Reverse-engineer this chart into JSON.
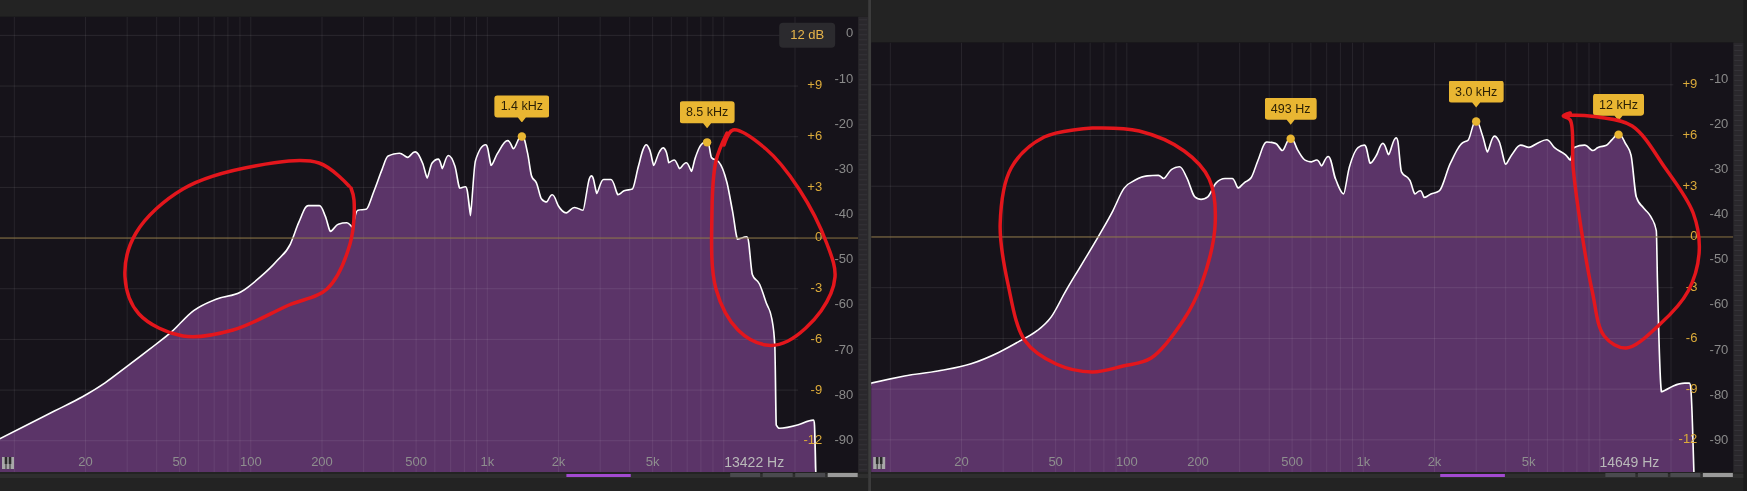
{
  "chart_data": [
    {
      "type": "area",
      "log": "x",
      "grid": true,
      "xlim": [
        8.7,
        37000
      ],
      "ylim": [
        -97,
        3.8
      ],
      "y2lim": [
        -13.85,
        13.1
      ],
      "xticks": [
        {
          "value": 10,
          "label": null
        },
        20,
        {
          "value": 30,
          "label": null
        },
        {
          "value": 40,
          "label": null
        },
        50,
        {
          "value": 60,
          "label": null
        },
        {
          "value": 70,
          "label": null
        },
        {
          "value": 80,
          "label": null
        },
        {
          "value": 90,
          "label": null
        },
        100,
        200,
        {
          "value": 300,
          "label": null
        },
        {
          "value": 400,
          "label": null
        },
        500,
        {
          "value": 600,
          "label": null
        },
        {
          "value": 700,
          "label": null
        },
        {
          "value": 800,
          "label": null
        },
        {
          "value": 900,
          "label": null
        },
        {
          "value": 1000,
          "label": "1k"
        },
        {
          "value": 2000,
          "label": "2k"
        },
        {
          "value": 3000,
          "label": null
        },
        {
          "value": 4000,
          "label": null
        },
        {
          "value": 5000,
          "label": "5k"
        },
        {
          "value": 6000,
          "label": null
        },
        {
          "value": 7000,
          "label": null
        },
        {
          "value": 8000,
          "label": null
        },
        {
          "value": 9000,
          "label": null
        },
        {
          "value": 10000,
          "label": null
        },
        {
          "value": 20000,
          "label": null
        }
      ],
      "yticks": [
        0,
        -10,
        -20,
        -30,
        -40,
        -50,
        -60,
        -70,
        -80,
        -90
      ],
      "y2ticks": [
        {
          "value": 12,
          "label": null
        },
        {
          "value": 9,
          "label": "+9"
        },
        {
          "value": 6,
          "label": "+6"
        },
        {
          "value": 3,
          "label": "+3"
        },
        0,
        -3,
        -6,
        -9,
        -12
      ],
      "ref_lines": [
        {
          "axis": "y2",
          "value": 0,
          "color": "#8a7442"
        }
      ],
      "x": [
        8.7,
        11.4,
        14.9,
        19.5,
        24.3,
        30.2,
        37.4,
        46.4,
        57.6,
        71.5,
        91,
        110,
        130,
        148,
        161,
        175,
        195,
        205,
        217,
        235,
        255,
        269,
        284,
        308,
        334,
        362,
        382,
        425,
        461,
        495,
        529,
        557,
        588,
        620,
        645,
        685,
        724,
        763,
        808,
        850,
        898,
        984,
        1037,
        1110,
        1220,
        1290,
        1400,
        1470,
        1530,
        1600,
        1688,
        1783,
        1882,
        1986,
        2155,
        2340,
        2541,
        2755,
        2900,
        3103,
        3330,
        3568,
        3800,
        4120,
        4390,
        4580,
        4700,
        4830,
        5050,
        5380,
        5540,
        5680,
        5840,
        6160,
        6500,
        6930,
        7310,
        7630,
        8050,
        8500,
        8820,
        9450,
        10240,
        10800,
        11400,
        12500,
        13120,
        14070,
        15000,
        15850,
        16300,
        16560,
        17200,
        18600,
        20700,
        23900,
        24300
      ],
      "series": [
        {
          "color": "#5b3468",
          "values": [
            -89.8,
            -86.7,
            -83.6,
            -80.5,
            -77.4,
            -73.7,
            -70,
            -66.1,
            -61.4,
            -58.9,
            -57.3,
            -54,
            -50.3,
            -46.6,
            -41.7,
            -38.2,
            -38.2,
            -40.4,
            -43.9,
            -42.3,
            -42,
            -42.9,
            -39.2,
            -39,
            -34.9,
            -30,
            -27.2,
            -26.6,
            -27.5,
            -26.3,
            -28.7,
            -32.1,
            -28.7,
            -27.9,
            -30,
            -27.1,
            -29.3,
            -34.3,
            -34,
            -40.4,
            -28.1,
            -24.7,
            -29.3,
            -26.6,
            -23.8,
            -25.6,
            -22.7,
            -26.5,
            -31.6,
            -33,
            -36.7,
            -37.4,
            -35.8,
            -38.2,
            -39.8,
            -38.6,
            -39.2,
            -31.6,
            -35.5,
            -32.4,
            -32.4,
            -35.8,
            -34.9,
            -34.5,
            -29.3,
            -25.8,
            -24.7,
            -25.8,
            -29.3,
            -26.2,
            -25.4,
            -26.3,
            -28.7,
            -28.1,
            -30,
            -28.7,
            -30.6,
            -27.5,
            -24.7,
            -24,
            -27.5,
            -28.4,
            -33,
            -39.2,
            -45.6,
            -45.1,
            -53.4,
            -55.5,
            -59.6,
            -63.2,
            -68.8,
            -86.7,
            -87.5,
            -87.3,
            -86.7,
            -85.7,
            -97
          ]
        },
        {
          "type": "scatter",
          "marker": "circle",
          "color": "#e9b632",
          "x": [
            1400,
            8500
          ],
          "values": [
            -22.7,
            -24
          ]
        }
      ],
      "annotations": [
        "12 dB",
        {
          "text": "1.4 kHz",
          "x": 1400,
          "y": -22.7
        },
        {
          "text": "8.5 kHz",
          "x": 8500,
          "y": -24
        },
        "13422 Hz"
      ]
    },
    {
      "type": "area",
      "log": "x",
      "grid": true,
      "xlim": [
        8.3,
        36700
      ],
      "ylim": [
        -97,
        -1.9
      ],
      "y2lim": [
        -13.9,
        11.5
      ],
      "xticks": [
        {
          "value": 10,
          "label": null
        },
        20,
        {
          "value": 30,
          "label": null
        },
        {
          "value": 40,
          "label": null
        },
        50,
        {
          "value": 60,
          "label": null
        },
        {
          "value": 70,
          "label": null
        },
        {
          "value": 80,
          "label": null
        },
        {
          "value": 90,
          "label": null
        },
        100,
        200,
        {
          "value": 300,
          "label": null
        },
        {
          "value": 400,
          "label": null
        },
        500,
        {
          "value": 600,
          "label": null
        },
        {
          "value": 700,
          "label": null
        },
        {
          "value": 800,
          "label": null
        },
        {
          "value": 900,
          "label": null
        },
        {
          "value": 1000,
          "label": "1k"
        },
        {
          "value": 2000,
          "label": "2k"
        },
        {
          "value": 3000,
          "label": null
        },
        {
          "value": 4000,
          "label": null
        },
        {
          "value": 5000,
          "label": "5k"
        },
        {
          "value": 6000,
          "label": null
        },
        {
          "value": 7000,
          "label": null
        },
        {
          "value": 8000,
          "label": null
        },
        {
          "value": 9000,
          "label": null
        },
        {
          "value": 10000,
          "label": null
        },
        {
          "value": 20000,
          "label": null
        }
      ],
      "yticks": [
        -10,
        -20,
        -30,
        -40,
        -50,
        -60,
        -70,
        -80,
        -90
      ],
      "y2ticks": [
        {
          "value": 9,
          "label": "+9"
        },
        {
          "value": 6,
          "label": "+6"
        },
        {
          "value": 3,
          "label": "+3"
        },
        0,
        -3,
        -6,
        -9,
        -12
      ],
      "ref_lines": [
        {
          "axis": "y2",
          "value": 0,
          "color": "#8a7442"
        }
      ],
      "x": [
        8.3,
        11.5,
        15.9,
        22,
        28.8,
        35.8,
        42.1,
        48.3,
        55.3,
        65.1,
        76.6,
        87.8,
        97.9,
        109,
        122,
        136,
        143,
        155,
        167,
        178,
        193,
        206,
        221,
        240,
        260,
        279,
        295,
        315,
        338,
        361,
        391,
        424,
        455,
        493,
        527,
        565,
        603,
        636,
        666,
        710,
        758,
        826,
        881,
        954,
        1010,
        1067,
        1145,
        1210,
        1278,
        1378,
        1440,
        1563,
        1650,
        1740,
        1805,
        1937,
        2104,
        2346,
        2617,
        2795,
        3000,
        3170,
        3345,
        3588,
        3720,
        3995,
        4264,
        4625,
        5016,
        5440,
        5965,
        6400,
        7130,
        7530,
        7820,
        8620,
        9350,
        9860,
        10700,
        11300,
        12000,
        12770,
        13450,
        14180,
        15190,
        16290,
        17200,
        17390,
        18140,
        18850,
        20500,
        22880,
        23900,
        24800
      ],
      "series": [
        {
          "color": "#5b3468",
          "values": [
            -77.5,
            -75.9,
            -74.8,
            -73.2,
            -70.7,
            -68,
            -65.8,
            -62.7,
            -57.2,
            -51,
            -44.8,
            -39.3,
            -34.3,
            -32.5,
            -31.6,
            -31.5,
            -32.2,
            -30.2,
            -29.6,
            -31.9,
            -36.2,
            -36.8,
            -36.2,
            -33.1,
            -32.2,
            -32.2,
            -34.3,
            -33.1,
            -31.9,
            -28.1,
            -24.1,
            -24.4,
            -26,
            -23.2,
            -26,
            -28.1,
            -28.5,
            -28.1,
            -29.4,
            -27.3,
            -32.2,
            -35.6,
            -29.4,
            -25.3,
            -24.8,
            -28.8,
            -26.9,
            -24.4,
            -26.9,
            -23.2,
            -30.6,
            -32.5,
            -35.6,
            -34.9,
            -36.4,
            -35.6,
            -34.9,
            -28.8,
            -24.4,
            -23.6,
            -19.4,
            -22.6,
            -26.3,
            -22.8,
            -23.8,
            -29,
            -26.9,
            -24.8,
            -25.3,
            -24.4,
            -23.6,
            -25.3,
            -26.9,
            -28.1,
            -25.3,
            -24.8,
            -26,
            -25.3,
            -24.8,
            -23.6,
            -22.3,
            -24.4,
            -26.9,
            -36.2,
            -38.6,
            -40.5,
            -43.6,
            -54.7,
            -79.4,
            -79.1,
            -78.1,
            -77.5,
            -77.5,
            -97
          ]
        },
        {
          "type": "scatter",
          "marker": "circle",
          "color": "#e9b632",
          "x": [
            493,
            3000,
            12000
          ],
          "values": [
            -23.2,
            -19.4,
            -22.3
          ]
        }
      ],
      "annotations": [
        {
          "text": "493 Hz",
          "x": 493,
          "y": -23.2
        },
        {
          "text": "3.0 kHz",
          "x": 3000,
          "y": -19.4
        },
        {
          "text": "12 kHz",
          "x": 12000,
          "y": -22.3
        },
        "14649 Hz"
      ]
    }
  ]
}
